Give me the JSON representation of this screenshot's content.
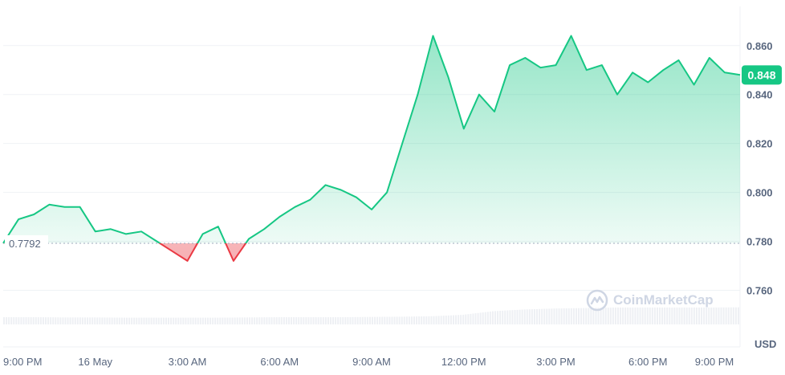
{
  "chart_data": {
    "type": "area",
    "x_unit": "hour",
    "x": [
      0,
      0.5,
      1,
      1.5,
      2,
      2.5,
      3,
      3.5,
      4,
      4.5,
      5,
      5.5,
      6,
      6.5,
      7,
      7.5,
      8,
      8.5,
      9,
      9.5,
      10,
      10.5,
      11,
      11.5,
      12,
      12.5,
      13,
      13.5,
      14,
      14.5,
      15,
      15.5,
      16,
      16.5,
      17,
      17.5,
      18,
      18.5,
      19,
      19.5,
      20,
      20.5,
      21,
      21.5,
      22,
      22.5,
      23,
      23.5,
      24
    ],
    "y": [
      0.7792,
      0.789,
      0.791,
      0.795,
      0.794,
      0.794,
      0.784,
      0.785,
      0.783,
      0.784,
      0.78,
      0.776,
      0.772,
      0.783,
      0.786,
      0.772,
      0.781,
      0.785,
      0.79,
      0.794,
      0.797,
      0.803,
      0.801,
      0.798,
      0.793,
      0.8,
      0.82,
      0.84,
      0.864,
      0.847,
      0.826,
      0.84,
      0.833,
      0.852,
      0.855,
      0.851,
      0.852,
      0.864,
      0.85,
      0.852,
      0.84,
      0.849,
      0.845,
      0.85,
      0.854,
      0.844,
      0.855,
      0.849,
      0.848
    ],
    "baseline": 0.7792,
    "baseline_label": "0.7792",
    "current_value": "0.848",
    "ylim": [
      0.748,
      0.876
    ],
    "y_ticks": [
      "0.860",
      "0.840",
      "0.820",
      "0.800",
      "0.780",
      "0.760"
    ],
    "y_tick_values": [
      0.86,
      0.84,
      0.82,
      0.8,
      0.78,
      0.76
    ],
    "x_ticks": [
      "9:00 PM",
      "16 May",
      "3:00 AM",
      "6:00 AM",
      "9:00 AM",
      "12:00 PM",
      "3:00 PM",
      "6:00 PM",
      "9:00 PM"
    ],
    "x_tick_values": [
      0,
      3,
      6,
      9,
      12,
      15,
      18,
      21,
      24
    ],
    "y_unit": "USD",
    "volume_trend": [
      0.3,
      0.3,
      0.29,
      0.29,
      0.28,
      0.28,
      0.28,
      0.28,
      0.29,
      0.3,
      0.3,
      0.3,
      0.31,
      0.32,
      0.34,
      0.4,
      0.55,
      0.62,
      0.66,
      0.68,
      0.7,
      0.7,
      0.7,
      0.7,
      0.71
    ],
    "grid": true,
    "colors": {
      "up": "#16c784",
      "down": "#ea3943",
      "baseline": "#a6b0c3",
      "grid": "#eff2f5",
      "text": "#58667e",
      "badge": "#16c784"
    }
  },
  "watermark": "CoinMarketCap"
}
